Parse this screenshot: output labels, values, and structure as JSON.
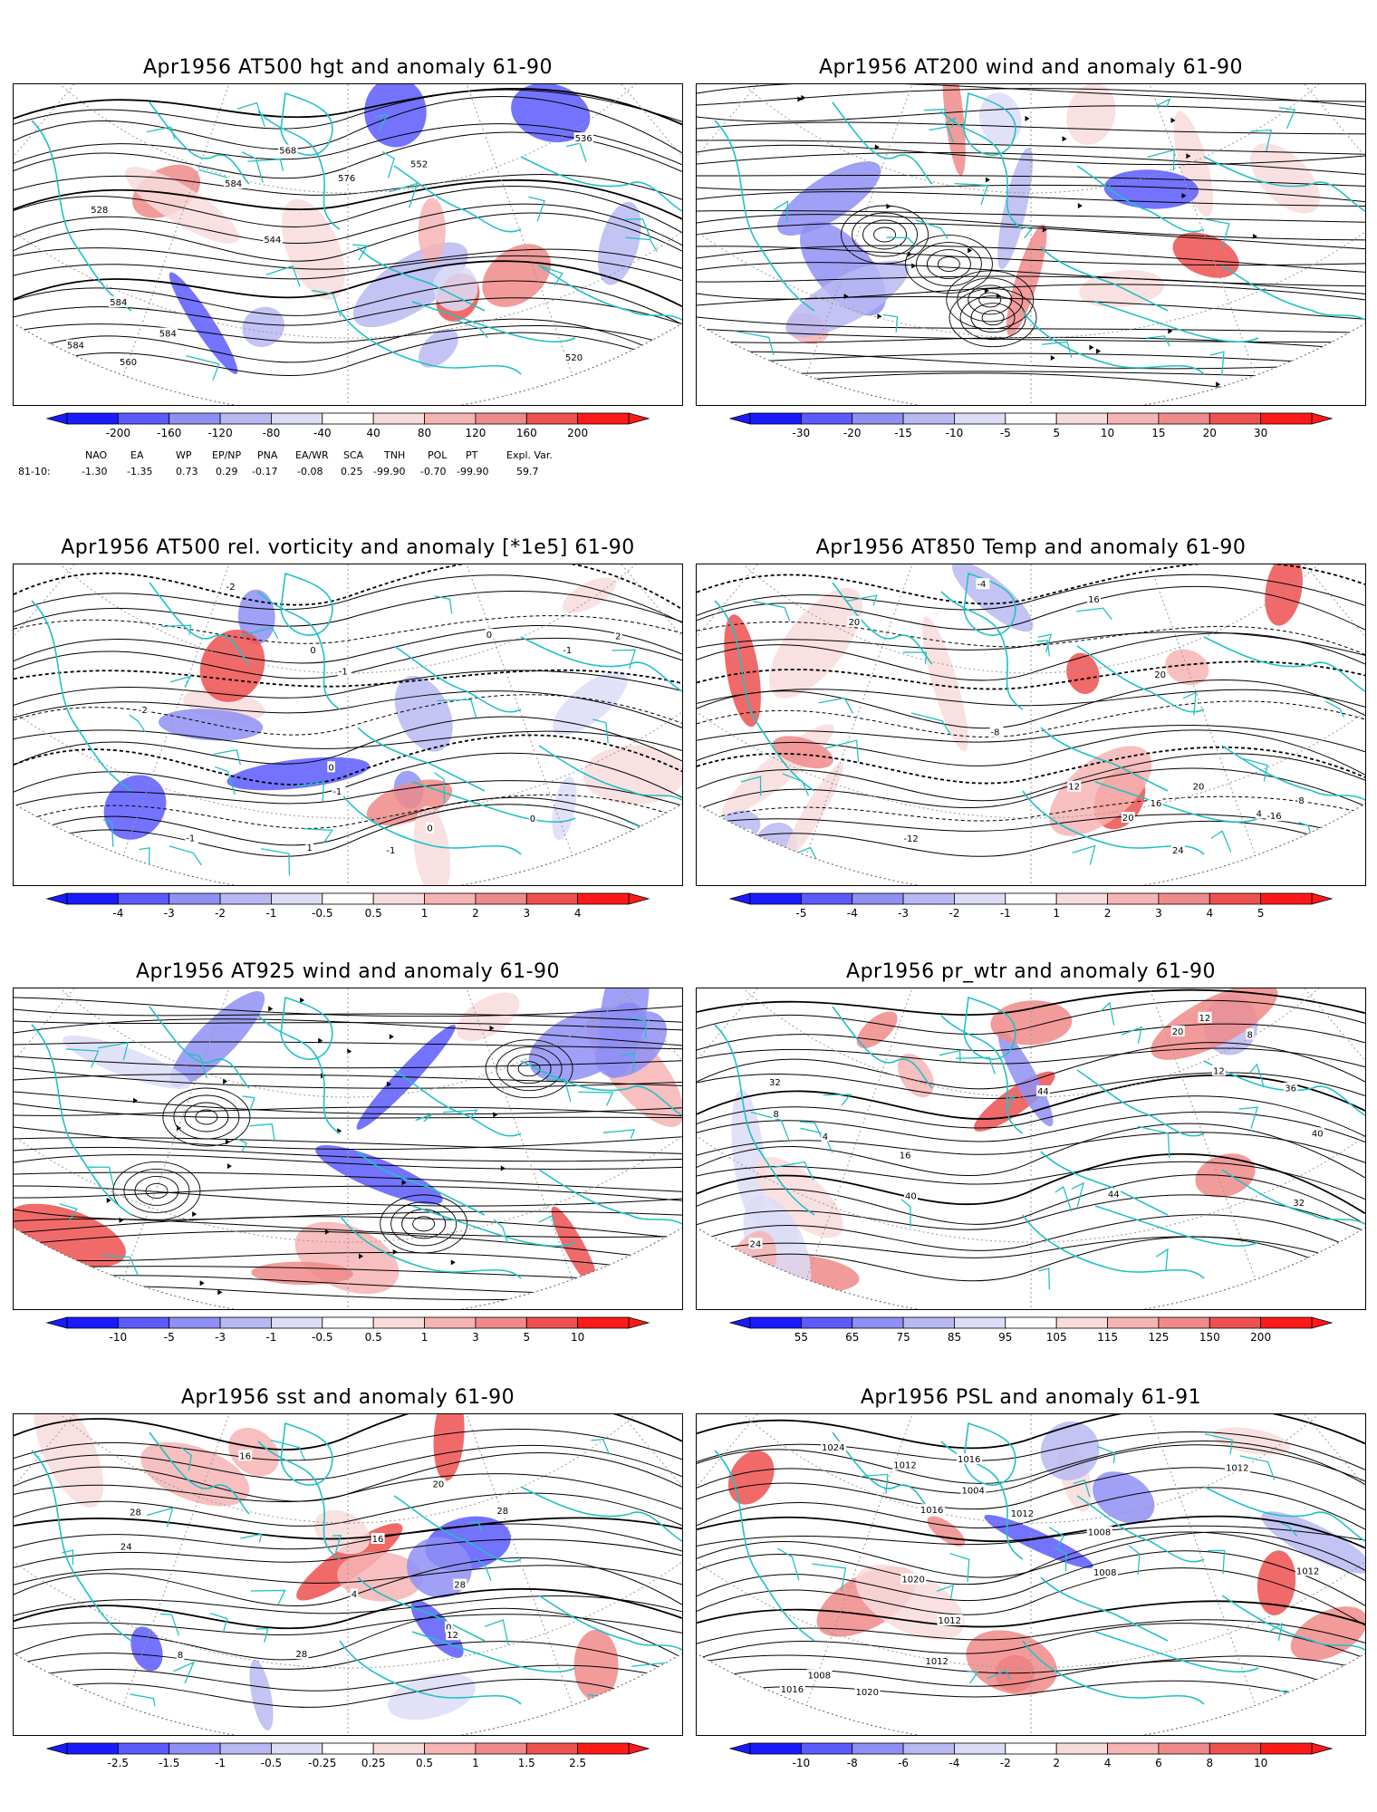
{
  "panels": [
    {
      "id": "p1",
      "title": "Apr1956 AT500 hgt and anomaly 61-90",
      "colorbar": [
        "-200",
        "-160",
        "-120",
        "-80",
        "-40",
        "40",
        "80",
        "120",
        "160",
        "200"
      ],
      "contour_labels": [
        "520",
        "528",
        "536",
        "544",
        "552",
        "560",
        "568",
        "576",
        "584",
        "584",
        "584",
        "584"
      ],
      "style": "height"
    },
    {
      "id": "p2",
      "title": "Apr1956 AT200 wind and anomaly 61-90",
      "colorbar": [
        "-30",
        "-20",
        "-15",
        "-10",
        "-5",
        "5",
        "10",
        "15",
        "20",
        "30"
      ],
      "contour_labels": [],
      "style": "stream"
    },
    {
      "id": "p3",
      "title": "Apr1956 AT500 rel. vorticity and anomaly [*1e5] 61-90",
      "colorbar": [
        "-4",
        "-3",
        "-2",
        "-1",
        "-0.5",
        "0.5",
        "1",
        "2",
        "3",
        "4"
      ],
      "contour_labels": [
        "2",
        "-2",
        "-1",
        "0",
        "-1",
        "2",
        "0",
        "-1",
        "1",
        "-1",
        "0",
        "-1",
        "0",
        "0"
      ],
      "style": "vort"
    },
    {
      "id": "p4",
      "title": "Apr1956 AT850 Temp and anomaly 61-90",
      "colorbar": [
        "-5",
        "-4",
        "-3",
        "-2",
        "-1",
        "1",
        "2",
        "3",
        "4",
        "5"
      ],
      "contour_labels": [
        "20",
        "-16",
        "-12",
        "-8",
        "-4",
        "4",
        "8",
        "12",
        "16",
        "16",
        "20",
        "24",
        "24",
        "20",
        "20"
      ],
      "style": "temp"
    },
    {
      "id": "p5",
      "title": "Apr1956 AT925 wind and anomaly 61-90",
      "colorbar": [
        "-10",
        "-5",
        "-3",
        "-1",
        "-0.5",
        "0.5",
        "1",
        "3",
        "5",
        "10"
      ],
      "contour_labels": [],
      "style": "stream2"
    },
    {
      "id": "p6",
      "title": "Apr1956 pr_wtr and anomaly 61-90",
      "colorbar": [
        "55",
        "65",
        "75",
        "85",
        "95",
        "105",
        "115",
        "125",
        "150",
        "200"
      ],
      "contour_labels": [
        "32",
        "4",
        "8",
        "12",
        "16",
        "20",
        "24",
        "32",
        "36",
        "40",
        "44",
        "12",
        "8",
        "40",
        "44"
      ],
      "style": "prw"
    },
    {
      "id": "p7",
      "title": "Apr1956 sst and anomaly 61-90",
      "colorbar": [
        "-2.5",
        "-1.5",
        "-1",
        "-0.5",
        "-0.25",
        "0.25",
        "0.5",
        "1",
        "1.5",
        "2.5"
      ],
      "contour_labels": [
        "28",
        "28",
        "0",
        "4",
        "8",
        "12",
        "16",
        "20",
        "24",
        "28",
        "28",
        "16"
      ],
      "style": "sst"
    },
    {
      "id": "p8",
      "title": "Apr1956 PSL and anomaly 61-91",
      "colorbar": [
        "-10",
        "-8",
        "-6",
        "-4",
        "-2",
        "2",
        "4",
        "6",
        "8",
        "10"
      ],
      "contour_labels": [
        "1012",
        "1016",
        "1012",
        "1020",
        "1024",
        "1008",
        "1016",
        "1012",
        "1020",
        "1012",
        "1016",
        "1012",
        "1008",
        "1004",
        "1008",
        "1012"
      ],
      "style": "psl"
    }
  ],
  "index_table": {
    "headers": [
      "NAO",
      "EA",
      "WP",
      "EP/NP",
      "PNA",
      "EA/WR",
      "SCA",
      "TNH",
      "POL",
      "PT",
      "Expl. Var."
    ],
    "row_label": "81-10:",
    "values": [
      "-1.30",
      "-1.35",
      "0.73",
      "0.29",
      "-0.17",
      "-0.08",
      "0.25",
      "-99.90",
      "-0.70",
      "-99.90",
      "59.7"
    ]
  },
  "colors": {
    "coast": "#22c1c3",
    "contour": "#000000",
    "blue_scale": [
      "#1a1aff",
      "#5a5aff",
      "#8f8ff5",
      "#b8b8f2",
      "#dcdcf7"
    ],
    "red_scale": [
      "#f8dcdc",
      "#f6b4b4",
      "#f08a8a",
      "#ef5050",
      "#ff1a1a"
    ]
  }
}
